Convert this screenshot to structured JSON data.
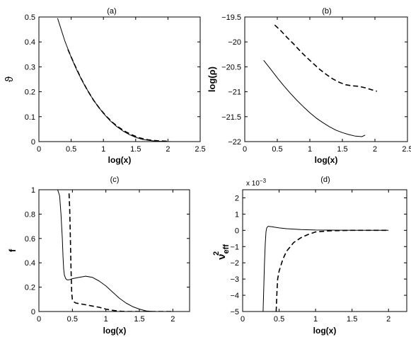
{
  "chart_data": [
    {
      "type": "line",
      "title": "(a)",
      "xlabel": "log(x)",
      "ylabel": "ϑ",
      "xlim": [
        0,
        2.5
      ],
      "ylim": [
        0,
        0.5
      ],
      "xticks": [
        "0",
        "0.5",
        "1",
        "1.5",
        "2",
        "2.5"
      ],
      "yticks": [
        "0",
        "0.1",
        "0.2",
        "0.3",
        "0.4",
        "0.5"
      ],
      "grid": false,
      "series": [
        {
          "style": "solid",
          "x": [
            0.29,
            0.4,
            0.5,
            0.6,
            0.7,
            0.8,
            0.9,
            1.0,
            1.1,
            1.2,
            1.3,
            1.4,
            1.5,
            1.6,
            1.7,
            1.8,
            1.9,
            2.0
          ],
          "y": [
            0.495,
            0.405,
            0.338,
            0.28,
            0.23,
            0.185,
            0.147,
            0.113,
            0.085,
            0.062,
            0.043,
            0.028,
            0.017,
            0.009,
            0.005,
            0.002,
            0.001,
            0.0
          ]
        },
        {
          "style": "dashed",
          "x": [
            0.45,
            0.55,
            0.65,
            0.75,
            0.85,
            0.95,
            1.05,
            1.15,
            1.25,
            1.35,
            1.45,
            1.55,
            1.65,
            1.75,
            1.85,
            1.95,
            2.03
          ],
          "y": [
            0.37,
            0.31,
            0.255,
            0.207,
            0.165,
            0.13,
            0.1,
            0.075,
            0.055,
            0.039,
            0.026,
            0.016,
            0.009,
            0.005,
            0.003,
            0.002,
            0.0
          ]
        }
      ]
    },
    {
      "type": "line",
      "title": "(b)",
      "xlabel": "log(x)",
      "ylabel": "log(ρ)",
      "xlim": [
        0,
        2.5
      ],
      "ylim": [
        -22,
        -19.5
      ],
      "xticks": [
        "0",
        "0.5",
        "1",
        "1.5",
        "2",
        "2.5"
      ],
      "yticks": [
        "−22",
        "−21.5",
        "−21",
        "−20.5",
        "−20",
        "−19.5"
      ],
      "grid": false,
      "series": [
        {
          "style": "solid",
          "x": [
            0.29,
            0.4,
            0.5,
            0.6,
            0.7,
            0.8,
            0.9,
            1.0,
            1.1,
            1.2,
            1.3,
            1.4,
            1.5,
            1.6,
            1.7,
            1.8,
            1.85
          ],
          "y": [
            -20.37,
            -20.55,
            -20.72,
            -20.88,
            -21.03,
            -21.17,
            -21.3,
            -21.42,
            -21.53,
            -21.62,
            -21.7,
            -21.77,
            -21.82,
            -21.86,
            -21.89,
            -21.9,
            -21.87
          ]
        },
        {
          "style": "dashed",
          "x": [
            0.46,
            0.55,
            0.65,
            0.75,
            0.85,
            0.95,
            1.05,
            1.15,
            1.25,
            1.35,
            1.45,
            1.55,
            1.65,
            1.75,
            1.85,
            1.95,
            2.03
          ],
          "y": [
            -19.66,
            -19.77,
            -19.91,
            -20.04,
            -20.18,
            -20.31,
            -20.43,
            -20.55,
            -20.65,
            -20.74,
            -20.81,
            -20.86,
            -20.88,
            -20.89,
            -20.92,
            -20.96,
            -20.99
          ]
        }
      ]
    },
    {
      "type": "line",
      "title": "(c)",
      "xlabel": "log(x)",
      "ylabel": "f",
      "xlim": [
        0,
        2.25
      ],
      "ylim": [
        0,
        1
      ],
      "xticks": [
        "0",
        "0.5",
        "1",
        "1.5",
        "2"
      ],
      "yticks": [
        "0",
        "0.2",
        "0.4",
        "0.6",
        "0.8",
        "1"
      ],
      "grid": false,
      "series": [
        {
          "style": "solid",
          "x": [
            0.28,
            0.31,
            0.33,
            0.35,
            0.36,
            0.37,
            0.38,
            0.4,
            0.42,
            0.45,
            0.5,
            0.6,
            0.7,
            0.8,
            0.9,
            1.0,
            1.1,
            1.2,
            1.3,
            1.4,
            1.5,
            1.6,
            1.7,
            1.8,
            1.9,
            2.0
          ],
          "y": [
            1.0,
            0.95,
            0.8,
            0.6,
            0.45,
            0.35,
            0.3,
            0.27,
            0.26,
            0.26,
            0.27,
            0.28,
            0.29,
            0.28,
            0.25,
            0.21,
            0.16,
            0.11,
            0.07,
            0.04,
            0.02,
            0.005,
            0.0,
            0.0,
            0.0,
            0.0
          ]
        },
        {
          "style": "dashed",
          "x": [
            0.45,
            0.46,
            0.47,
            0.48,
            0.49,
            0.5,
            0.52,
            0.55,
            0.6,
            0.7,
            0.8,
            0.9,
            1.0,
            1.1,
            1.2,
            1.3,
            1.5,
            1.7,
            1.9,
            2.0
          ],
          "y": [
            0.97,
            0.85,
            0.6,
            0.35,
            0.15,
            0.1,
            0.08,
            0.07,
            0.065,
            0.055,
            0.045,
            0.035,
            0.02,
            0.01,
            0.003,
            0.0,
            0.0,
            0.0,
            0.0,
            0.0
          ]
        }
      ]
    },
    {
      "type": "line",
      "title": "(d)",
      "xlabel": "log(x)",
      "ylabel": "ν²eff",
      "ylabel_main": "ν",
      "ylabel_sup": "2",
      "ylabel_sub": "eff",
      "multiplier": "x 10",
      "multiplier_exp": "−3",
      "xlim": [
        0,
        2.25
      ],
      "ylim": [
        -5,
        2.5
      ],
      "xticks": [
        "0",
        "0.5",
        "1",
        "1.5",
        "2"
      ],
      "yticks": [
        "−5",
        "−4",
        "−3",
        "−2",
        "−1",
        "0",
        "1",
        "2"
      ],
      "grid": false,
      "series": [
        {
          "style": "solid",
          "x": [
            0.28,
            0.29,
            0.3,
            0.31,
            0.32,
            0.33,
            0.35,
            0.4,
            0.5,
            0.6,
            0.8,
            1.0,
            1.5,
            2.0
          ],
          "y": [
            -5.0,
            -3.5,
            -2.0,
            -0.8,
            -0.1,
            0.15,
            0.25,
            0.22,
            0.15,
            0.1,
            0.05,
            0.02,
            0.0,
            0.0
          ]
        },
        {
          "style": "dashed",
          "x": [
            0.46,
            0.47,
            0.48,
            0.5,
            0.55,
            0.6,
            0.7,
            0.8,
            0.9,
            1.0,
            1.2,
            1.5,
            1.8,
            2.0
          ],
          "y": [
            -5.0,
            -3.8,
            -3.0,
            -2.5,
            -1.8,
            -1.3,
            -0.75,
            -0.45,
            -0.25,
            -0.1,
            -0.03,
            0.0,
            0.0,
            0.0
          ]
        }
      ]
    }
  ]
}
